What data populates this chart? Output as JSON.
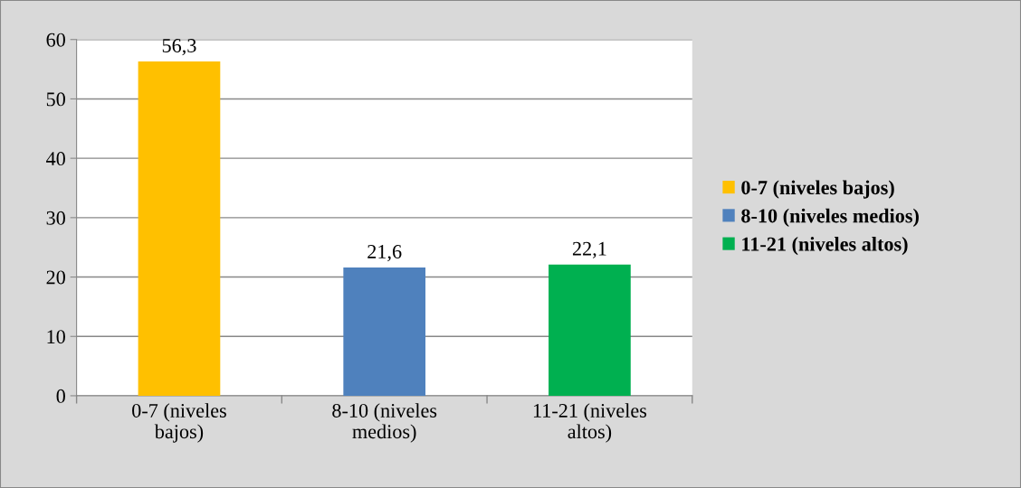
{
  "chart_data": {
    "type": "bar",
    "categories": [
      "0-7 (niveles bajos)",
      "8-10 (niveles medios)",
      "11-21 (niveles altos)"
    ],
    "series": [
      {
        "name": "0-7 (niveles bajos)",
        "color": "#ffc000",
        "values": [
          56.3,
          null,
          null
        ],
        "value_labels": [
          "56,3",
          null,
          null
        ]
      },
      {
        "name": "8-10 (niveles medios)",
        "color": "#4f81bd",
        "values": [
          null,
          21.6,
          null
        ],
        "value_labels": [
          null,
          "21,6",
          null
        ]
      },
      {
        "name": "11-21 (niveles altos)",
        "color": "#00b050",
        "values": [
          null,
          null,
          22.1
        ],
        "value_labels": [
          null,
          null,
          "22,1"
        ]
      }
    ],
    "stacked": true,
    "ylim": [
      0,
      60
    ],
    "yticks": [
      0,
      10,
      20,
      30,
      40,
      50,
      60
    ],
    "grid": "y",
    "legend": "right"
  }
}
